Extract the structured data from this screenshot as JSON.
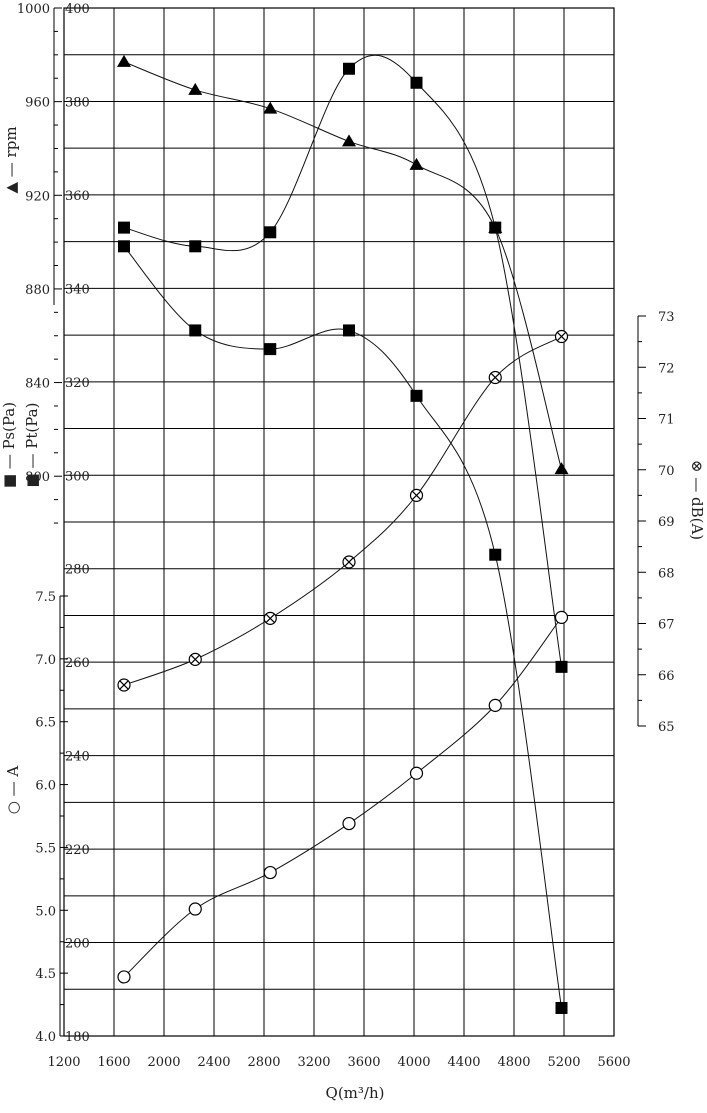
{
  "chart_data": {
    "type": "line",
    "x": {
      "label": "Q(m³/h)",
      "range": [
        1200,
        5600
      ],
      "ticks": [
        1200,
        1600,
        2000,
        2400,
        2800,
        3200,
        3600,
        4000,
        4400,
        4800,
        5200,
        5600
      ]
    },
    "axes": {
      "rpm": {
        "label": "rpm",
        "range": [
          780,
          1000
        ],
        "ticks": [
          800,
          840,
          880,
          920,
          960,
          1000
        ]
      },
      "pressure": {
        "label": "Ps(Pa)  Pt(Pa)",
        "range": [
          180,
          400
        ],
        "ticks": [
          180,
          200,
          220,
          240,
          260,
          280,
          300,
          320,
          340,
          360,
          380,
          400
        ]
      },
      "current": {
        "label": "A",
        "range": [
          4.0,
          7.5
        ],
        "ticks": [
          "4.0",
          "4.5",
          "5.0",
          "5.5",
          "6.0",
          "6.5",
          "7.0",
          "7.5"
        ]
      },
      "noise": {
        "label": "dB(A)",
        "range": [
          65,
          73
        ],
        "ticks": [
          65,
          66,
          67,
          68,
          69,
          70,
          71,
          72,
          73
        ]
      }
    },
    "x_values": [
      1680,
      2250,
      2850,
      3480,
      4020,
      4650,
      5180
    ],
    "series": [
      {
        "name": "rpm",
        "axis": "rpm",
        "marker": "triangle",
        "values": [
          977,
          965,
          957,
          943,
          933,
          906,
          803
        ]
      },
      {
        "name": "Pt(Pa)",
        "axis": "pressure",
        "marker": "square",
        "values": [
          353,
          349,
          352,
          387,
          384,
          353,
          259
        ]
      },
      {
        "name": "Ps(Pa)",
        "axis": "pressure",
        "marker": "square",
        "values": [
          349,
          331,
          327,
          331,
          317,
          283,
          186
        ]
      },
      {
        "name": "A",
        "axis": "current",
        "marker": "circle",
        "values": [
          4.47,
          5.01,
          5.3,
          5.69,
          6.09,
          6.63,
          7.33
        ]
      },
      {
        "name": "dB(A)",
        "axis": "noise",
        "marker": "crossed-circle",
        "values": [
          65.8,
          66.3,
          67.1,
          68.2,
          69.5,
          71.8,
          72.6
        ]
      }
    ]
  }
}
